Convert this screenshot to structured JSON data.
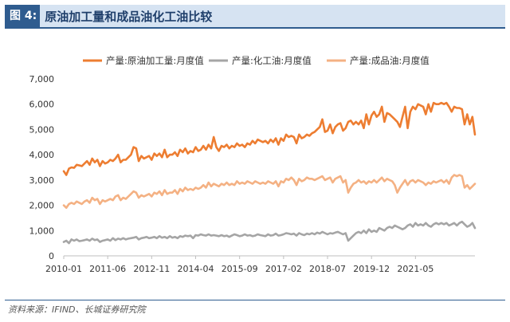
{
  "header": {
    "figure_number": "图 4:",
    "title": "原油加工量和成品油化工油比较"
  },
  "footer": {
    "source": "资料来源：IFIND、长城证券研究院"
  },
  "chart_data": {
    "type": "line",
    "title": "原油加工量和成品油化工油比较",
    "xlabel": "",
    "ylabel": "",
    "ylim": [
      0,
      7000
    ],
    "yticks": [
      "0",
      "1,000",
      "2,000",
      "3,000",
      "4,000",
      "5,000",
      "6,000",
      "7,000"
    ],
    "xticks": [
      "2010-01",
      "2011-06",
      "2012-11",
      "2014-04",
      "2015-09",
      "2017-02",
      "2018-07",
      "2019-12",
      "2021-05"
    ],
    "grid": false,
    "legend_position": "top",
    "series": [
      {
        "name": "产量:原油加工量:月度值",
        "color": "#ed7d31",
        "values": [
          3350,
          3200,
          3450,
          3500,
          3480,
          3600,
          3580,
          3550,
          3650,
          3750,
          3600,
          3850,
          3700,
          3800,
          3550,
          3750,
          3650,
          3700,
          3800,
          3750,
          3850,
          4000,
          3700,
          3800,
          3800,
          3900,
          4000,
          4300,
          4250,
          3750,
          3950,
          3850,
          3900,
          3950,
          3800,
          4050,
          3950,
          4050,
          3900,
          4200,
          3900,
          4000,
          4000,
          4100,
          3950,
          4200,
          4100,
          4250,
          4050,
          4150,
          4100,
          4300,
          4150,
          4200,
          4350,
          4200,
          4400,
          4250,
          4700,
          4300,
          4150,
          4350,
          4300,
          4400,
          4250,
          4350,
          4300,
          4450,
          4350,
          4400,
          4300,
          4450,
          4400,
          4550,
          4450,
          4600,
          4550,
          4500,
          4550,
          4450,
          4600,
          4500,
          4650,
          4400,
          4650,
          4550,
          4800,
          4700,
          4750,
          4700,
          4450,
          4800,
          4650,
          4700,
          4800,
          4750,
          4850,
          4900,
          5000,
          5100,
          5400,
          4900,
          4950,
          5200,
          4850,
          5100,
          5200,
          5250,
          4950,
          5050,
          5300,
          5350,
          5200,
          5300,
          5200,
          5350,
          5050,
          5600,
          5200,
          5550,
          5700,
          5500,
          5600,
          5900,
          5300,
          5650,
          5600,
          5500,
          5400,
          5300,
          5100,
          5500,
          5900,
          5050,
          5700,
          5900,
          5800,
          6000,
          5950,
          5900,
          5600,
          6000,
          5700,
          6050,
          6000,
          6000,
          6050,
          6000,
          6050,
          5900,
          5700,
          5900,
          5850,
          5850,
          5800,
          5200,
          5600,
          5200,
          5500,
          4800
        ]
      },
      {
        "name": "产量:化工油:月度值",
        "color": "#a5a5a5",
        "values": [
          550,
          600,
          500,
          650,
          600,
          650,
          580,
          600,
          620,
          650,
          600,
          680,
          620,
          650,
          550,
          600,
          620,
          650,
          600,
          700,
          620,
          680,
          650,
          700,
          650,
          680,
          700,
          720,
          750,
          650,
          700,
          720,
          750,
          700,
          720,
          750,
          700,
          780,
          720,
          750,
          700,
          780,
          720,
          750,
          700,
          780,
          750,
          800,
          780,
          800,
          700,
          820,
          800,
          850,
          820,
          800,
          850,
          800,
          820,
          800,
          780,
          820,
          780,
          800,
          750,
          800,
          850,
          820,
          780,
          800,
          850,
          800,
          820,
          780,
          800,
          850,
          820,
          800,
          780,
          850,
          800,
          820,
          880,
          800,
          820,
          850,
          900,
          880,
          850,
          880,
          800,
          900,
          850,
          820,
          880,
          850,
          900,
          850,
          920,
          880,
          950,
          900,
          850,
          900,
          880,
          920,
          950,
          900,
          850,
          900,
          600,
          700,
          800,
          900,
          950,
          900,
          1000,
          900,
          1050,
          950,
          1000,
          950,
          1100,
          1050,
          1000,
          1100,
          1150,
          1100,
          1200,
          1150,
          1100,
          1050,
          1100,
          1200,
          1250,
          1150,
          1300,
          1200,
          1250,
          1200,
          1300,
          1200,
          1150,
          1250,
          1300,
          1250,
          1300,
          1250,
          1300,
          1200,
          1250,
          1300,
          1200,
          1300,
          1350,
          1250,
          1150,
          1200,
          1300,
          1100
        ]
      },
      {
        "name": "产量:成品油:月度值",
        "color": "#f4b183",
        "values": [
          2000,
          1900,
          2050,
          2100,
          2050,
          2150,
          2100,
          2050,
          2150,
          2200,
          2100,
          2300,
          2200,
          2250,
          2050,
          2200,
          2150,
          2200,
          2250,
          2200,
          2350,
          2400,
          2200,
          2300,
          2250,
          2350,
          2450,
          2550,
          2500,
          2300,
          2400,
          2350,
          2400,
          2450,
          2350,
          2500,
          2450,
          2550,
          2400,
          2600,
          2450,
          2500,
          2500,
          2600,
          2450,
          2650,
          2550,
          2700,
          2600,
          2650,
          2600,
          2700,
          2650,
          2700,
          2800,
          2700,
          2900,
          2750,
          2850,
          2800,
          2750,
          2850,
          2800,
          2900,
          2800,
          2850,
          2800,
          2950,
          2850,
          2900,
          2850,
          2950,
          2900,
          2850,
          2950,
          2900,
          2850,
          2900,
          2850,
          2950,
          2900,
          2850,
          2950,
          2750,
          2950,
          2900,
          3050,
          3000,
          3100,
          3000,
          2800,
          3050,
          2950,
          3000,
          3100,
          3050,
          3050,
          3000,
          3050,
          3100,
          3150,
          3000,
          3050,
          3100,
          2900,
          3050,
          3100,
          3150,
          2900,
          3000,
          2500,
          2700,
          2850,
          2900,
          3000,
          2900,
          2950,
          2850,
          2950,
          2900,
          3000,
          2900,
          3000,
          3100,
          2950,
          3050,
          3000,
          2950,
          2800,
          2500,
          2700,
          2850,
          3000,
          2800,
          2950,
          3000,
          2900,
          3000,
          2950,
          2900,
          2800,
          2900,
          2850,
          2950,
          2900,
          2950,
          3000,
          2900,
          3000,
          2850,
          3100,
          3200,
          3150,
          3200,
          3150,
          2700,
          2800,
          2650,
          2750,
          2850
        ]
      }
    ]
  }
}
